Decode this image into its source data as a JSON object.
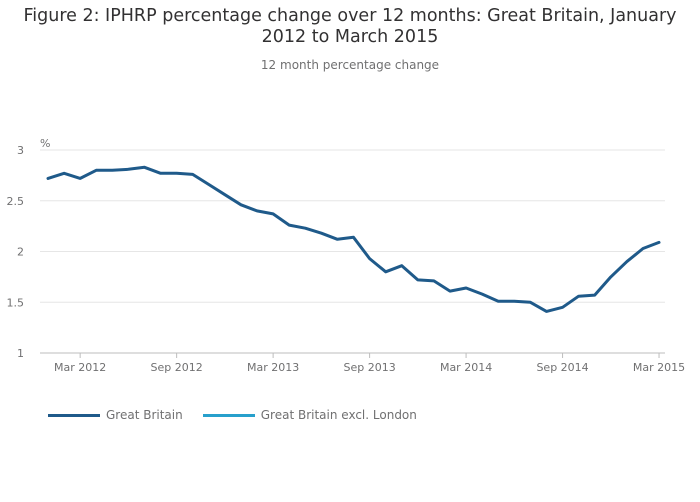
{
  "chart_data": {
    "type": "line",
    "title_lines": [
      "Figure 2: IPHRP percentage change over 12 months: Great Britain, January",
      "2012 to March 2015"
    ],
    "subtitle": "12 month percentage change",
    "ylabel": "%",
    "xlabel": "",
    "ylim": [
      1,
      3
    ],
    "yticks": [
      1,
      1.5,
      2,
      2.5,
      3
    ],
    "ytick_labels": [
      "1",
      "1.5",
      "2",
      "2.5",
      "3"
    ],
    "x_start": "Jan 2012",
    "x_end": "Mar 2015",
    "xticks": [
      {
        "label": "Mar 2012",
        "index": 2
      },
      {
        "label": "Sep 2012",
        "index": 8
      },
      {
        "label": "Mar 2013",
        "index": 14
      },
      {
        "label": "Sep 2013",
        "index": 20
      },
      {
        "label": "Mar 2014",
        "index": 26
      },
      {
        "label": "Sep 2014",
        "index": 32
      },
      {
        "label": "Mar 2015",
        "index": 38
      }
    ],
    "grid": true,
    "legend_position": "bottom-left",
    "series": [
      {
        "name": "Great Britain",
        "color": "#1f5a8a",
        "values": [
          2.72,
          2.77,
          2.72,
          2.8,
          2.8,
          2.81,
          2.83,
          2.77,
          2.77,
          2.76,
          2.66,
          2.56,
          2.46,
          2.4,
          2.37,
          2.26,
          2.23,
          2.18,
          2.12,
          2.14,
          1.93,
          1.8,
          1.86,
          1.72,
          1.71,
          1.61,
          1.64,
          1.58,
          1.51,
          1.51,
          1.5,
          1.41,
          1.45,
          1.56,
          1.57,
          1.75,
          1.9,
          2.03,
          2.09
        ]
      },
      {
        "name": "Great Britain excl. London",
        "color": "#27a0cc",
        "values": []
      }
    ]
  }
}
